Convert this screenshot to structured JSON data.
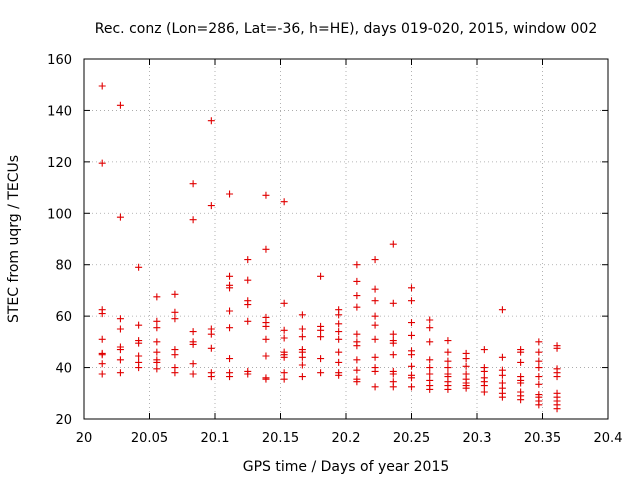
{
  "chart_data": {
    "type": "scatter",
    "title": "Rec. conz (Lon=286, Lat=-36, h=HE), days 019-020, 2015, window 002",
    "xlabel": "GPS time / Days of year 2015",
    "ylabel": "STEC from uqrg / TECUs",
    "xlim": [
      20,
      20.4
    ],
    "ylim": [
      20,
      160
    ],
    "xticks": [
      20,
      20.05,
      20.1,
      20.15,
      20.2,
      20.25,
      20.3,
      20.35,
      20.4
    ],
    "xtick_labels": [
      "20",
      "20.05",
      "20.1",
      "20.15",
      "20.2",
      "20.25",
      "20.3",
      "20.35",
      "20.4"
    ],
    "yticks": [
      20,
      40,
      60,
      80,
      100,
      120,
      140,
      160
    ],
    "ytick_labels": [
      "20",
      "40",
      "60",
      "80",
      "100",
      "120",
      "140",
      "160"
    ],
    "grid": true,
    "marker": "plus",
    "color": "#e00000",
    "series": [
      {
        "name": "STEC",
        "points": [
          [
            20.0139,
            149.5
          ],
          [
            20.0139,
            119.5
          ],
          [
            20.0139,
            62.5
          ],
          [
            20.0139,
            61
          ],
          [
            20.0139,
            51
          ],
          [
            20.0139,
            45.5
          ],
          [
            20.0139,
            45
          ],
          [
            20.0139,
            41.5
          ],
          [
            20.0139,
            37.5
          ],
          [
            20.0278,
            142
          ],
          [
            20.0278,
            98.5
          ],
          [
            20.0278,
            59
          ],
          [
            20.0278,
            55
          ],
          [
            20.0278,
            48
          ],
          [
            20.0278,
            47
          ],
          [
            20.0278,
            43
          ],
          [
            20.0278,
            38
          ],
          [
            20.0417,
            79
          ],
          [
            20.0417,
            56.5
          ],
          [
            20.0417,
            50.5
          ],
          [
            20.0417,
            49.5
          ],
          [
            20.0417,
            44.5
          ],
          [
            20.0417,
            42
          ],
          [
            20.0417,
            40
          ],
          [
            20.0556,
            67.5
          ],
          [
            20.0556,
            58
          ],
          [
            20.0556,
            55.5
          ],
          [
            20.0556,
            50
          ],
          [
            20.0556,
            46
          ],
          [
            20.0556,
            43
          ],
          [
            20.0556,
            42
          ],
          [
            20.0556,
            39.5
          ],
          [
            20.0694,
            68.5
          ],
          [
            20.0694,
            61.5
          ],
          [
            20.0694,
            59
          ],
          [
            20.0694,
            47
          ],
          [
            20.0694,
            45
          ],
          [
            20.0694,
            40
          ],
          [
            20.0694,
            38
          ],
          [
            20.0833,
            111.5
          ],
          [
            20.0833,
            97.5
          ],
          [
            20.0833,
            54
          ],
          [
            20.0833,
            50
          ],
          [
            20.0833,
            49
          ],
          [
            20.0833,
            41.5
          ],
          [
            20.0833,
            37.5
          ],
          [
            20.0972,
            136
          ],
          [
            20.0972,
            103
          ],
          [
            20.0972,
            55
          ],
          [
            20.0972,
            53
          ],
          [
            20.0972,
            47.5
          ],
          [
            20.0972,
            38
          ],
          [
            20.0972,
            36.5
          ],
          [
            20.1111,
            107.5
          ],
          [
            20.1111,
            75.5
          ],
          [
            20.1111,
            72
          ],
          [
            20.1111,
            71
          ],
          [
            20.1111,
            62
          ],
          [
            20.1111,
            55.5
          ],
          [
            20.1111,
            43.5
          ],
          [
            20.1111,
            38
          ],
          [
            20.1111,
            36.5
          ],
          [
            20.125,
            82
          ],
          [
            20.125,
            74
          ],
          [
            20.125,
            66
          ],
          [
            20.125,
            64.5
          ],
          [
            20.125,
            58
          ],
          [
            20.125,
            38.5
          ],
          [
            20.125,
            37.5
          ],
          [
            20.1389,
            107
          ],
          [
            20.1389,
            86
          ],
          [
            20.1389,
            59.5
          ],
          [
            20.1389,
            57.5
          ],
          [
            20.1389,
            56
          ],
          [
            20.1389,
            51
          ],
          [
            20.1389,
            44.5
          ],
          [
            20.1389,
            36
          ],
          [
            20.1389,
            35.5
          ],
          [
            20.1528,
            104.5
          ],
          [
            20.1528,
            65
          ],
          [
            20.1528,
            54.5
          ],
          [
            20.1528,
            51.5
          ],
          [
            20.1528,
            46
          ],
          [
            20.1528,
            45
          ],
          [
            20.1528,
            44
          ],
          [
            20.1528,
            38
          ],
          [
            20.1528,
            35.5
          ],
          [
            20.1667,
            60.5
          ],
          [
            20.1667,
            55
          ],
          [
            20.1667,
            52
          ],
          [
            20.1667,
            47
          ],
          [
            20.1667,
            46
          ],
          [
            20.1667,
            44
          ],
          [
            20.1667,
            41
          ],
          [
            20.1667,
            36.5
          ],
          [
            20.1806,
            75.5
          ],
          [
            20.1806,
            56
          ],
          [
            20.1806,
            54.5
          ],
          [
            20.1806,
            52
          ],
          [
            20.1806,
            43.5
          ],
          [
            20.1806,
            38
          ],
          [
            20.1944,
            62.5
          ],
          [
            20.1944,
            60.5
          ],
          [
            20.1944,
            57
          ],
          [
            20.1944,
            54
          ],
          [
            20.1944,
            51
          ],
          [
            20.1944,
            46
          ],
          [
            20.1944,
            42
          ],
          [
            20.1944,
            38
          ],
          [
            20.1944,
            37
          ],
          [
            20.2083,
            80
          ],
          [
            20.2083,
            73.5
          ],
          [
            20.2083,
            68
          ],
          [
            20.2083,
            63.5
          ],
          [
            20.2083,
            53
          ],
          [
            20.2083,
            50
          ],
          [
            20.2083,
            48.5
          ],
          [
            20.2083,
            43
          ],
          [
            20.2083,
            39
          ],
          [
            20.2083,
            35.5
          ],
          [
            20.2083,
            34.5
          ],
          [
            20.2222,
            82
          ],
          [
            20.2222,
            70.5
          ],
          [
            20.2222,
            66
          ],
          [
            20.2222,
            60
          ],
          [
            20.2222,
            56.5
          ],
          [
            20.2222,
            51
          ],
          [
            20.2222,
            44
          ],
          [
            20.2222,
            40
          ],
          [
            20.2222,
            38.5
          ],
          [
            20.2222,
            32.5
          ],
          [
            20.2361,
            88
          ],
          [
            20.2361,
            65
          ],
          [
            20.2361,
            53
          ],
          [
            20.2361,
            50.5
          ],
          [
            20.2361,
            49.5
          ],
          [
            20.2361,
            45
          ],
          [
            20.2361,
            38.5
          ],
          [
            20.2361,
            37.5
          ],
          [
            20.2361,
            34.5
          ],
          [
            20.2361,
            32.5
          ],
          [
            20.25,
            71
          ],
          [
            20.25,
            66
          ],
          [
            20.25,
            57.5
          ],
          [
            20.25,
            52.5
          ],
          [
            20.25,
            46.5
          ],
          [
            20.25,
            45
          ],
          [
            20.25,
            40.5
          ],
          [
            20.25,
            37
          ],
          [
            20.25,
            36
          ],
          [
            20.25,
            32.5
          ],
          [
            20.2639,
            58.5
          ],
          [
            20.2639,
            55.5
          ],
          [
            20.2639,
            50
          ],
          [
            20.2639,
            43
          ],
          [
            20.2639,
            40
          ],
          [
            20.2639,
            37.5
          ],
          [
            20.2639,
            35
          ],
          [
            20.2639,
            33
          ],
          [
            20.2639,
            31.5
          ],
          [
            20.2778,
            50.5
          ],
          [
            20.2778,
            46
          ],
          [
            20.2778,
            42.5
          ],
          [
            20.2778,
            40
          ],
          [
            20.2778,
            37.5
          ],
          [
            20.2778,
            36.5
          ],
          [
            20.2778,
            34.5
          ],
          [
            20.2778,
            33
          ],
          [
            20.2778,
            31.5
          ],
          [
            20.2917,
            45.5
          ],
          [
            20.2917,
            43.5
          ],
          [
            20.2917,
            40.5
          ],
          [
            20.2917,
            37.5
          ],
          [
            20.2917,
            35.5
          ],
          [
            20.2917,
            34
          ],
          [
            20.2917,
            33
          ],
          [
            20.2917,
            32
          ],
          [
            20.3056,
            47
          ],
          [
            20.3056,
            40
          ],
          [
            20.3056,
            38.5
          ],
          [
            20.3056,
            36
          ],
          [
            20.3056,
            34.5
          ],
          [
            20.3056,
            33
          ],
          [
            20.3056,
            30.5
          ],
          [
            20.3194,
            62.5
          ],
          [
            20.3194,
            44
          ],
          [
            20.3194,
            39
          ],
          [
            20.3194,
            37
          ],
          [
            20.3194,
            34
          ],
          [
            20.3194,
            32
          ],
          [
            20.3194,
            30
          ],
          [
            20.3194,
            28.5
          ],
          [
            20.3333,
            47
          ],
          [
            20.3333,
            46
          ],
          [
            20.3333,
            42
          ],
          [
            20.3333,
            36.5
          ],
          [
            20.3333,
            35
          ],
          [
            20.3333,
            34
          ],
          [
            20.3333,
            30.5
          ],
          [
            20.3333,
            29
          ],
          [
            20.3333,
            27.5
          ],
          [
            20.3472,
            50
          ],
          [
            20.3472,
            46
          ],
          [
            20.3472,
            42.5
          ],
          [
            20.3472,
            40
          ],
          [
            20.3472,
            36.5
          ],
          [
            20.3472,
            33.5
          ],
          [
            20.3472,
            29.5
          ],
          [
            20.3472,
            28.5
          ],
          [
            20.3472,
            27
          ],
          [
            20.3472,
            25.5
          ],
          [
            20.3611,
            48.5
          ],
          [
            20.3611,
            47.5
          ],
          [
            20.3611,
            39.5
          ],
          [
            20.3611,
            38
          ],
          [
            20.3611,
            36.5
          ],
          [
            20.3611,
            30
          ],
          [
            20.3611,
            28.5
          ],
          [
            20.3611,
            27
          ],
          [
            20.3611,
            25.5
          ],
          [
            20.3611,
            24
          ]
        ]
      }
    ]
  }
}
